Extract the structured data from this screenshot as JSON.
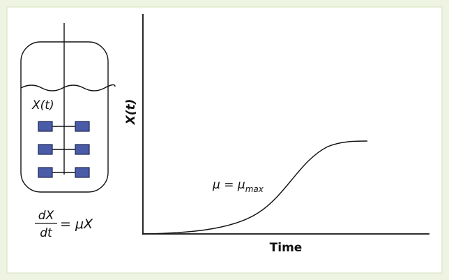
{
  "tank": {
    "label": "X(t)"
  },
  "equation": {
    "numerator": "dX",
    "denominator": "dt",
    "rhs": "= μX"
  },
  "plot": {
    "y_axis_label": "X(t)",
    "x_axis_label": "Time",
    "annotation": {
      "text": "μ = μ",
      "subscript": "max"
    }
  }
}
